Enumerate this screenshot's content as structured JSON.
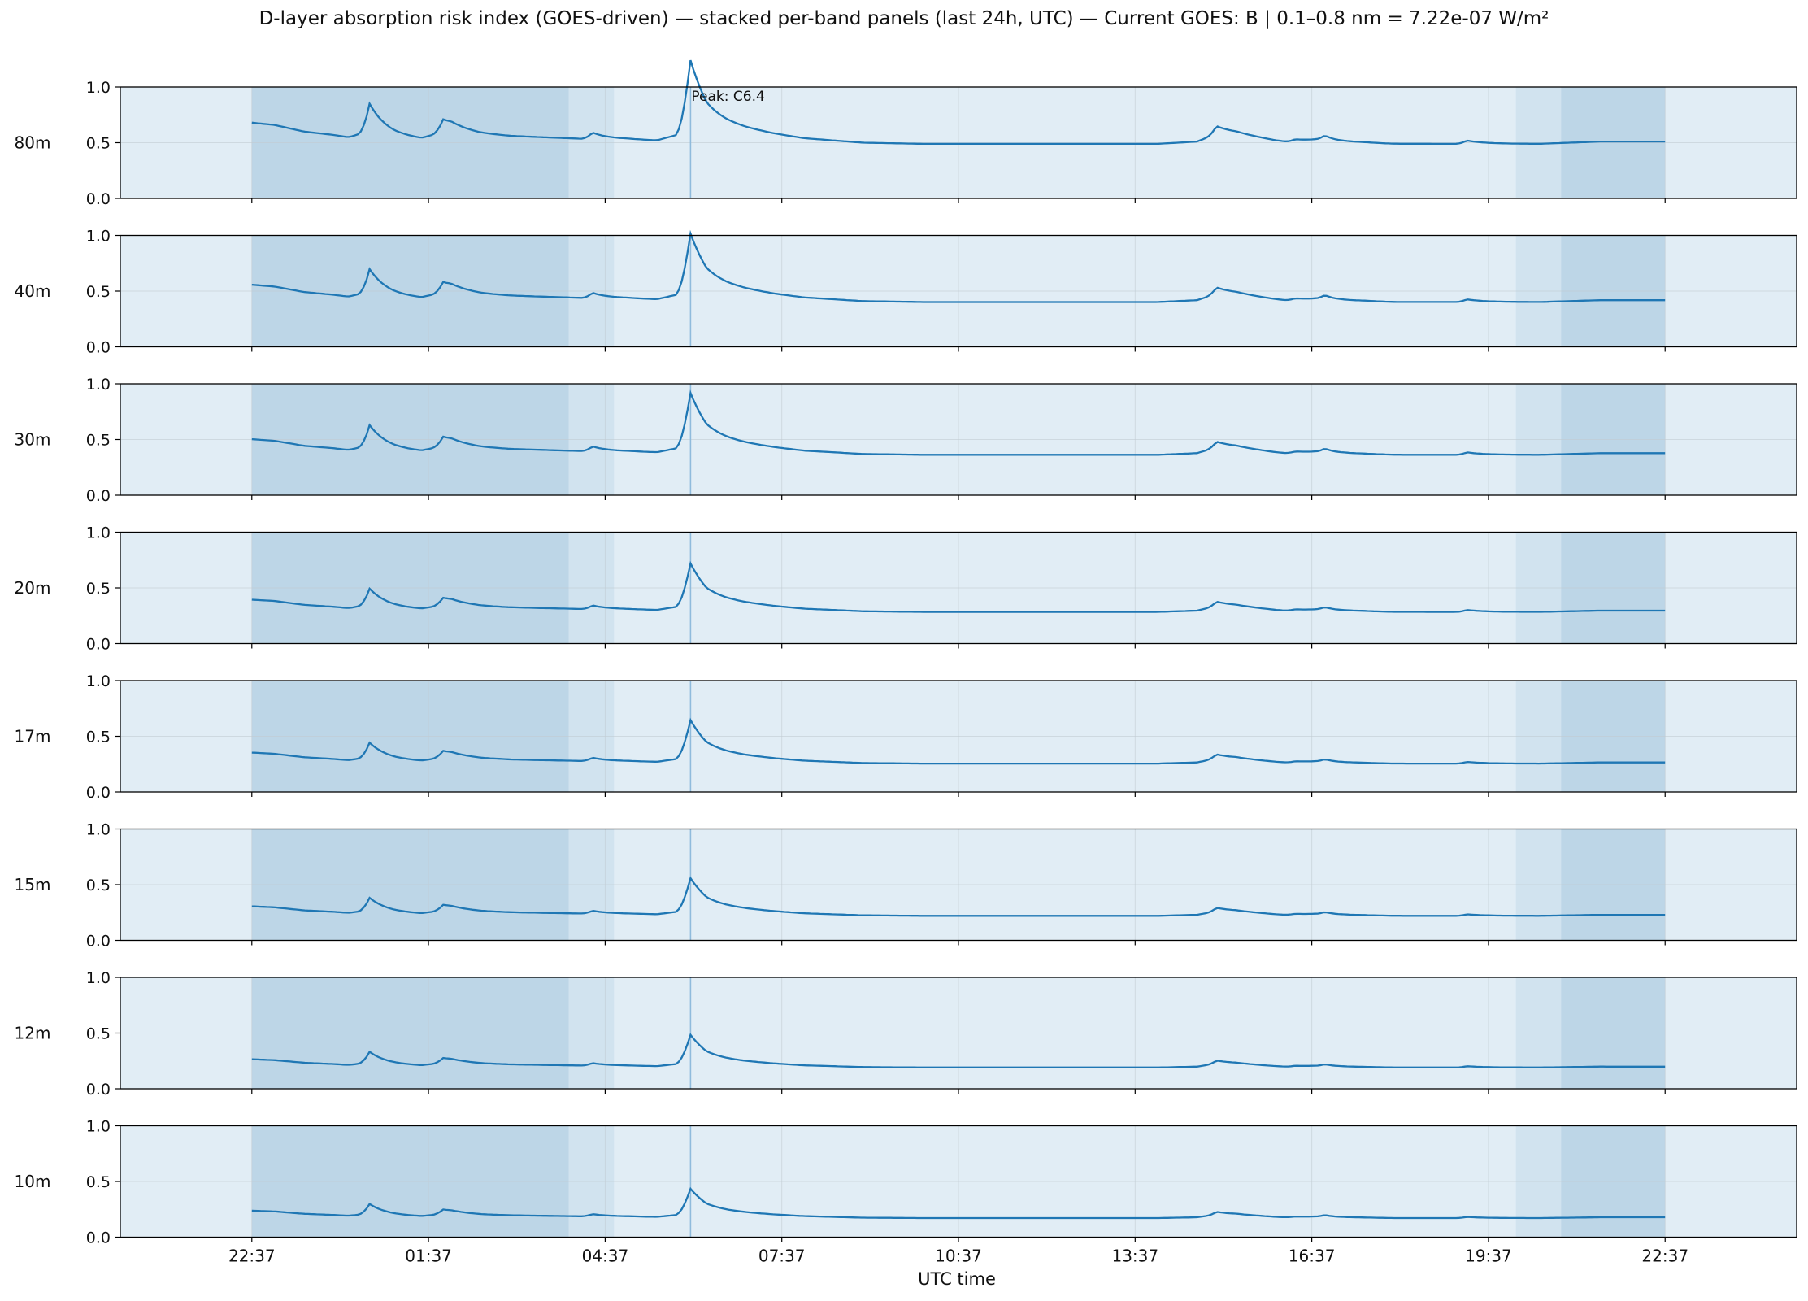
{
  "chart_data": {
    "type": "line",
    "title": "D-layer absorption risk index (GOES-driven) — stacked per-band panels (last 24h, UTC) — Current GOES: B  |  0.1–0.8 nm = 7.22e-07 W/m²",
    "xlabel": "UTC time",
    "ylabel": "",
    "ylim": [
      0,
      1
    ],
    "y_ticks": [
      "0.0",
      "0.5",
      "1.0"
    ],
    "x_tick_labels": [
      "22:37",
      "01:37",
      "04:37",
      "07:37",
      "10:37",
      "13:37",
      "16:37",
      "19:37",
      "22:37"
    ],
    "grid": true,
    "annotation": "Peak: C6.4",
    "peak_time": "06:04",
    "shaded_periods": [
      {
        "start": "22:37",
        "end": "04:00",
        "level": "dark"
      },
      {
        "start": "04:00",
        "end": "04:46",
        "level": "medium"
      },
      {
        "start": "20:05",
        "end": "20:51",
        "level": "medium"
      },
      {
        "start": "20:51",
        "end": "22:37",
        "level": "dark"
      }
    ],
    "base_profile": {
      "times": [
        "22:37",
        "23:00",
        "23:30",
        "00:00",
        "00:15",
        "00:20",
        "00:30",
        "01:00",
        "01:30",
        "02:00",
        "02:30",
        "03:00",
        "03:30",
        "04:00",
        "04:30",
        "05:00",
        "05:30",
        "05:50",
        "06:00",
        "06:04",
        "06:20",
        "06:40",
        "07:00",
        "07:30",
        "08:00",
        "08:30",
        "09:00",
        "10:00",
        "11:00",
        "12:00",
        "13:00",
        "14:00",
        "14:40",
        "15:00",
        "15:20",
        "15:40",
        "16:00",
        "16:20",
        "16:40",
        "17:00",
        "17:30",
        "18:00",
        "18:30",
        "19:00",
        "19:30",
        "20:00",
        "20:30",
        "21:00",
        "21:30",
        "22:00",
        "22:37"
      ],
      "values": [
        0.68,
        0.66,
        0.6,
        0.57,
        0.55,
        0.56,
        0.59,
        0.55,
        0.53,
        0.62,
        0.58,
        0.56,
        0.55,
        0.54,
        0.53,
        0.53,
        0.52,
        0.57,
        0.82,
        0.88,
        0.72,
        0.67,
        0.63,
        0.58,
        0.54,
        0.52,
        0.5,
        0.49,
        0.49,
        0.49,
        0.49,
        0.49,
        0.51,
        0.58,
        0.58,
        0.55,
        0.52,
        0.5,
        0.52,
        0.5,
        0.5,
        0.49,
        0.49,
        0.49,
        0.49,
        0.49,
        0.49,
        0.5,
        0.51,
        0.51,
        0.51
      ]
    },
    "peaks": [
      {
        "time": "00:37",
        "height": 0.27
      },
      {
        "time": "01:52",
        "height": 0.11
      },
      {
        "time": "04:24",
        "height": 0.06
      },
      {
        "time": "06:04",
        "height": 0.36
      },
      {
        "time": "15:00",
        "height": 0.07
      },
      {
        "time": "16:20",
        "height": 0.03
      },
      {
        "time": "16:50",
        "height": 0.05
      },
      {
        "time": "19:15",
        "height": 0.03
      }
    ],
    "series": [
      {
        "name": "80m",
        "scale": 1.0
      },
      {
        "name": "40m",
        "scale": 0.82
      },
      {
        "name": "30m",
        "scale": 0.74
      },
      {
        "name": "20m",
        "scale": 0.58
      },
      {
        "name": "17m",
        "scale": 0.52
      },
      {
        "name": "15m",
        "scale": 0.45
      },
      {
        "name": "12m",
        "scale": 0.39
      },
      {
        "name": "10m",
        "scale": 0.35
      }
    ]
  }
}
